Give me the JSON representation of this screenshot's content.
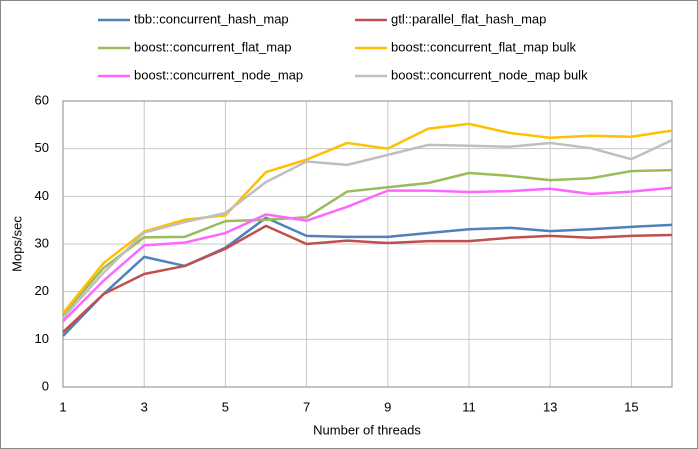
{
  "chart_data": {
    "type": "line",
    "x_label": "Number of threads",
    "y_label": "Mops/sec",
    "x": [
      1,
      2,
      3,
      4,
      5,
      6,
      7,
      8,
      9,
      10,
      11,
      12,
      13,
      14,
      15,
      16
    ],
    "xlim": [
      1,
      16
    ],
    "xticks": [
      1,
      3,
      5,
      7,
      9,
      11,
      13,
      15
    ],
    "ylim": [
      0,
      60
    ],
    "yticks": [
      0,
      10,
      20,
      30,
      40,
      50,
      60
    ],
    "grid": true,
    "legend": "top",
    "series": [
      {
        "name": "tbb::concurrent_hash_map",
        "color": "#4f81bd",
        "values": [
          10.7,
          19.5,
          27.3,
          25.4,
          29.2,
          35.5,
          31.7,
          31.5,
          31.5,
          32.3,
          33.1,
          33.4,
          32.7,
          33.1,
          33.6,
          34.0
        ]
      },
      {
        "name": "gtl::parallel_flat_hash_map",
        "color": "#c0504d",
        "values": [
          11.5,
          19.5,
          23.7,
          25.4,
          29.0,
          33.8,
          30.0,
          30.7,
          30.2,
          30.6,
          30.6,
          31.3,
          31.7,
          31.3,
          31.7,
          31.9
        ]
      },
      {
        "name": "boost::concurrent_flat_map",
        "color": "#9bbb59",
        "values": [
          15.2,
          25.0,
          31.4,
          31.5,
          34.8,
          35.1,
          35.6,
          41.0,
          41.9,
          42.8,
          44.9,
          44.3,
          43.4,
          43.8,
          45.3,
          45.5
        ]
      },
      {
        "name": "boost::concurrent_flat_map bulk",
        "color": "#ffc000",
        "values": [
          15.5,
          26.0,
          32.6,
          35.1,
          36.0,
          45.1,
          47.7,
          51.2,
          50.0,
          54.2,
          55.2,
          53.3,
          52.3,
          52.7,
          52.5,
          53.8
        ]
      },
      {
        "name": "boost::concurrent_node_map",
        "color": "#ff66ff",
        "values": [
          13.8,
          22.3,
          29.7,
          30.3,
          32.3,
          36.2,
          34.9,
          37.8,
          41.2,
          41.2,
          40.9,
          41.1,
          41.6,
          40.5,
          41.0,
          41.8
        ]
      },
      {
        "name": "boost::concurrent_node_map bulk",
        "color": "#bfbfbf",
        "values": [
          14.5,
          24.0,
          32.4,
          34.6,
          36.5,
          43.0,
          47.3,
          46.6,
          48.7,
          50.8,
          50.6,
          50.4,
          51.2,
          50.1,
          47.8,
          51.8
        ]
      }
    ]
  }
}
